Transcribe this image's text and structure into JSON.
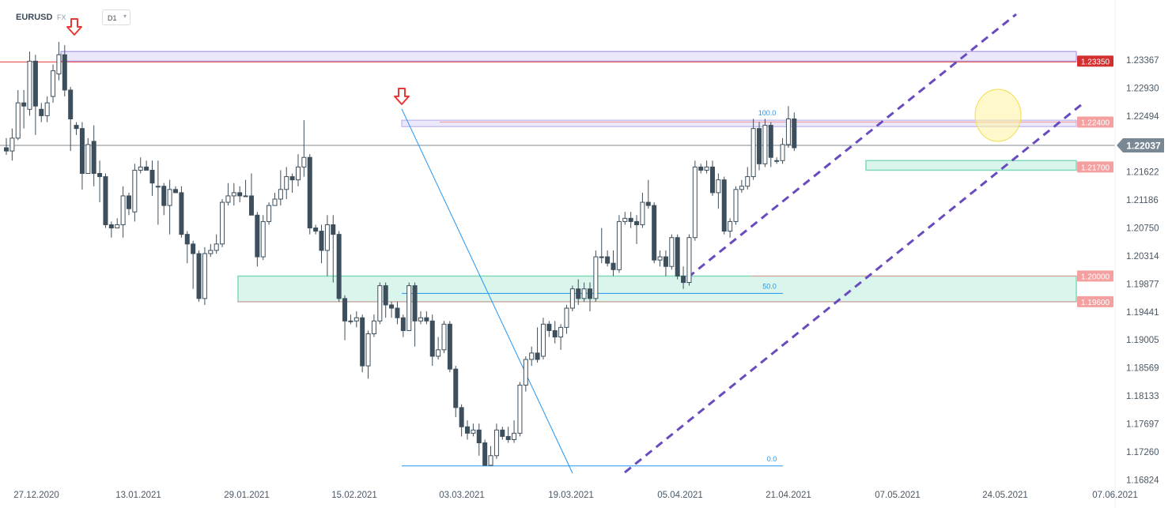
{
  "header": {
    "symbol": "EURUSD",
    "market": "FX",
    "timeframe": "D1",
    "timeframe_icon": "chevron-down-icon"
  },
  "colors": {
    "bull_candle": "#ffffff",
    "bear_candle": "#3d4f5c",
    "candle_outline": "#3d4f5c",
    "channel": "#6a4bbf",
    "fib_line": "#2196f3",
    "support_zone": "#d9f5ec",
    "support_zone_border": "#7fd8b8",
    "resistance_zone": "#ece8fb",
    "resistance_zone_border": "#b7a8ec",
    "level_red": "#e53935",
    "level_pink": "#f29a9a",
    "current_price": "#7d8a96",
    "highlight": "#fff3a0",
    "arrow": "#e53935"
  },
  "chart_data": {
    "type": "candlestick",
    "instrument": "EURUSD",
    "timeframe": "D1",
    "y_axis": {
      "ticks": [
        "1.23367",
        "1.22930",
        "1.22494",
        "1.22057",
        "1.21622",
        "1.21186",
        "1.20750",
        "1.20314",
        "1.19877",
        "1.19441",
        "1.19005",
        "1.18569",
        "1.18133",
        "1.17697",
        "1.17260",
        "1.16824"
      ],
      "range": [
        1.1676,
        1.2362
      ]
    },
    "x_axis": {
      "ticks": [
        "27.12.2020",
        "13.01.2021",
        "29.01.2021",
        "15.02.2021",
        "03.03.2021",
        "19.03.2021",
        "05.04.2021",
        "21.04.2021",
        "07.05.2021",
        "24.05.2021",
        "07.06.2021"
      ]
    },
    "current_price": {
      "label": "1.22037",
      "value": 1.22037
    },
    "levels": [
      {
        "label": "1.23350",
        "value": 1.2335,
        "style": "red"
      },
      {
        "label": "1.22400",
        "value": 1.224,
        "style": "pink"
      },
      {
        "label": "1.21700",
        "value": 1.217,
        "style": "teal"
      },
      {
        "label": "1.20000",
        "value": 1.2,
        "style": "pink"
      },
      {
        "label": "1.19600",
        "value": 1.196,
        "style": "pink"
      }
    ],
    "fibonacci": [
      {
        "label": "100.0",
        "value": 1.2243
      },
      {
        "label": "50.0",
        "value": 1.1973
      },
      {
        "label": "0.0",
        "value": 1.1704
      }
    ],
    "candles": [
      [
        1.22,
        1.2195,
        1.2215,
        1.2189
      ],
      [
        1.2195,
        1.2215,
        1.223,
        1.218
      ],
      [
        1.2215,
        1.227,
        1.229,
        1.2212
      ],
      [
        1.227,
        1.2265,
        1.229,
        1.223
      ],
      [
        1.226,
        1.2335,
        1.235,
        1.225
      ],
      [
        1.2335,
        1.2265,
        1.2345,
        1.222
      ],
      [
        1.226,
        1.225,
        1.227,
        1.224
      ],
      [
        1.225,
        1.227,
        1.228,
        1.224
      ],
      [
        1.228,
        1.232,
        1.233,
        1.227
      ],
      [
        1.2315,
        1.2345,
        1.2365,
        1.2305
      ],
      [
        1.2345,
        1.229,
        1.236,
        1.228
      ],
      [
        1.229,
        1.2245,
        1.2295,
        1.2195
      ],
      [
        1.2235,
        1.223,
        1.224,
        1.222
      ],
      [
        1.223,
        1.216,
        1.224,
        1.2135
      ],
      [
        1.216,
        1.2205,
        1.2215,
        1.216
      ],
      [
        1.221,
        1.216,
        1.2235,
        1.214
      ],
      [
        1.216,
        1.2155,
        1.218,
        1.2115
      ],
      [
        1.2155,
        1.208,
        1.216,
        1.2075
      ],
      [
        1.208,
        1.2075,
        1.2085,
        1.206
      ],
      [
        1.2075,
        1.208,
        1.209,
        1.2075
      ],
      [
        1.208,
        1.2125,
        1.214,
        1.206
      ],
      [
        1.2125,
        1.2105,
        1.213,
        1.2095
      ],
      [
        1.21,
        1.2165,
        1.2175,
        1.2085
      ],
      [
        1.2165,
        1.217,
        1.2185,
        1.216
      ],
      [
        1.217,
        1.2165,
        1.218,
        1.2165
      ],
      [
        1.2165,
        1.2145,
        1.218,
        1.2125
      ],
      [
        1.214,
        1.214,
        1.218,
        1.208
      ],
      [
        1.214,
        1.211,
        1.2145,
        1.2095
      ],
      [
        1.211,
        1.2135,
        1.215,
        1.2065
      ],
      [
        1.2135,
        1.213,
        1.214,
        1.213
      ],
      [
        1.213,
        1.2065,
        1.214,
        1.206
      ],
      [
        1.2065,
        1.205,
        1.207,
        1.202
      ],
      [
        1.205,
        1.2035,
        1.2055,
        1.198
      ],
      [
        1.2035,
        1.1965,
        1.204,
        1.196
      ],
      [
        1.1965,
        1.2035,
        1.2045,
        1.1955
      ],
      [
        1.2035,
        1.204,
        1.205,
        1.203
      ],
      [
        1.204,
        1.205,
        1.2065,
        1.2035
      ],
      [
        1.205,
        1.2115,
        1.212,
        1.2045
      ],
      [
        1.2115,
        1.2125,
        1.2145,
        1.211
      ],
      [
        1.2125,
        1.213,
        1.2145,
        1.211
      ],
      [
        1.213,
        1.2125,
        1.214,
        1.2115
      ],
      [
        1.2125,
        1.2125,
        1.215,
        1.2125
      ],
      [
        1.2125,
        1.2095,
        1.216,
        1.2095
      ],
      [
        1.2095,
        1.203,
        1.21,
        1.2015
      ],
      [
        1.203,
        1.2085,
        1.2095,
        1.2025
      ],
      [
        1.2085,
        1.211,
        1.2115,
        1.208
      ],
      [
        1.211,
        1.212,
        1.213,
        1.211
      ],
      [
        1.212,
        1.2135,
        1.2165,
        1.211
      ],
      [
        1.2135,
        1.2155,
        1.217,
        1.212
      ],
      [
        1.2155,
        1.215,
        1.216,
        1.213
      ],
      [
        1.215,
        1.217,
        1.219,
        1.214
      ],
      [
        1.217,
        1.2185,
        1.2243,
        1.2155
      ],
      [
        1.2185,
        1.2075,
        1.219,
        1.2065
      ],
      [
        1.2075,
        1.207,
        1.208,
        1.2065
      ],
      [
        1.207,
        1.204,
        1.208,
        1.202
      ],
      [
        1.204,
        1.208,
        1.2095,
        1.2
      ],
      [
        1.208,
        1.2065,
        1.2095,
        1.199
      ],
      [
        1.2065,
        1.1965,
        1.207,
        1.196
      ],
      [
        1.1965,
        1.193,
        1.197,
        1.19
      ],
      [
        1.193,
        1.193,
        1.194,
        1.1925
      ],
      [
        1.193,
        1.1935,
        1.1945,
        1.192
      ],
      [
        1.1935,
        1.186,
        1.194,
        1.185
      ],
      [
        1.186,
        1.191,
        1.1915,
        1.184
      ],
      [
        1.191,
        1.193,
        1.194,
        1.1905
      ],
      [
        1.193,
        1.1985,
        1.199,
        1.1925
      ],
      [
        1.1985,
        1.1955,
        1.199,
        1.1935
      ],
      [
        1.1955,
        1.195,
        1.196,
        1.1935
      ],
      [
        1.195,
        1.1935,
        1.196,
        1.1925
      ],
      [
        1.1935,
        1.1915,
        1.194,
        1.1905
      ],
      [
        1.1915,
        1.1985,
        1.199,
        1.1915
      ],
      [
        1.1985,
        1.193,
        1.199,
        1.189
      ],
      [
        1.193,
        1.1935,
        1.1945,
        1.1925
      ],
      [
        1.1935,
        1.193,
        1.1945,
        1.1925
      ],
      [
        1.193,
        1.1875,
        1.194,
        1.186
      ],
      [
        1.1875,
        1.1885,
        1.1905,
        1.187
      ],
      [
        1.1885,
        1.1925,
        1.193,
        1.188
      ],
      [
        1.1925,
        1.1855,
        1.193,
        1.185
      ],
      [
        1.1855,
        1.1795,
        1.186,
        1.178
      ],
      [
        1.1795,
        1.1765,
        1.18,
        1.175
      ],
      [
        1.1765,
        1.1755,
        1.1775,
        1.1745
      ],
      [
        1.1755,
        1.176,
        1.177,
        1.175
      ],
      [
        1.176,
        1.174,
        1.177,
        1.172
      ],
      [
        1.174,
        1.1705,
        1.1745,
        1.1704
      ],
      [
        1.1705,
        1.172,
        1.1735,
        1.1704
      ],
      [
        1.172,
        1.176,
        1.177,
        1.1715
      ],
      [
        1.176,
        1.175,
        1.1765,
        1.1745
      ],
      [
        1.175,
        1.1745,
        1.1765,
        1.174
      ],
      [
        1.1745,
        1.1755,
        1.1775,
        1.174
      ],
      [
        1.1755,
        1.183,
        1.1835,
        1.175
      ],
      [
        1.183,
        1.187,
        1.1875,
        1.182
      ],
      [
        1.187,
        1.188,
        1.189,
        1.186
      ],
      [
        1.188,
        1.187,
        1.192,
        1.1865
      ],
      [
        1.1875,
        1.1925,
        1.1935,
        1.187
      ],
      [
        1.1925,
        1.1915,
        1.193,
        1.1905
      ],
      [
        1.1915,
        1.1905,
        1.193,
        1.1895
      ],
      [
        1.1905,
        1.192,
        1.1925,
        1.1885
      ],
      [
        1.192,
        1.195,
        1.1955,
        1.191
      ],
      [
        1.195,
        1.198,
        1.1985,
        1.1945
      ],
      [
        1.198,
        1.1965,
        1.1995,
        1.1955
      ],
      [
        1.1965,
        1.198,
        1.199,
        1.196
      ],
      [
        1.198,
        1.1965,
        1.199,
        1.1945
      ],
      [
        1.1965,
        1.203,
        1.204,
        1.196
      ],
      [
        1.203,
        1.203,
        1.2075,
        1.202
      ],
      [
        1.203,
        1.202,
        1.204,
        1.2015
      ],
      [
        1.202,
        1.201,
        1.204,
        1.2
      ],
      [
        1.201,
        1.2085,
        1.2095,
        1.2005
      ],
      [
        1.2085,
        1.209,
        1.21,
        1.208
      ],
      [
        1.209,
        1.2085,
        1.21,
        1.2075
      ],
      [
        1.2085,
        1.208,
        1.2095,
        1.205
      ],
      [
        1.208,
        1.2115,
        1.213,
        1.2075
      ],
      [
        1.2115,
        1.211,
        1.215,
        1.2105
      ],
      [
        1.211,
        1.2025,
        1.2115,
        1.202
      ],
      [
        1.2025,
        1.203,
        1.204,
        1.2015
      ],
      [
        1.203,
        1.2015,
        1.204,
        1.2
      ],
      [
        1.2015,
        1.206,
        1.2065,
        1.201
      ],
      [
        1.206,
        1.2,
        1.2065,
        1.1995
      ],
      [
        1.2,
        1.199,
        1.2015,
        1.198
      ],
      [
        1.199,
        1.206,
        1.2065,
        1.1985
      ],
      [
        1.206,
        1.217,
        1.218,
        1.2055
      ],
      [
        1.217,
        1.2165,
        1.2175,
        1.216
      ],
      [
        1.2165,
        1.217,
        1.218,
        1.216
      ],
      [
        1.217,
        1.213,
        1.218,
        1.2125
      ],
      [
        1.213,
        1.215,
        1.216,
        1.2105
      ],
      [
        1.215,
        1.207,
        1.2155,
        1.2065
      ],
      [
        1.207,
        1.2085,
        1.209,
        1.206
      ],
      [
        1.2085,
        1.2135,
        1.214,
        1.208
      ],
      [
        1.2135,
        1.214,
        1.215,
        1.213
      ],
      [
        1.214,
        1.2155,
        1.217,
        1.2135
      ],
      [
        1.2155,
        1.223,
        1.2245,
        1.215
      ],
      [
        1.223,
        1.2175,
        1.224,
        1.2165
      ],
      [
        1.2175,
        1.2235,
        1.2245,
        1.217
      ],
      [
        1.2235,
        1.2185,
        1.224,
        1.217
      ],
      [
        1.218,
        1.218,
        1.2185,
        1.2175
      ],
      [
        1.218,
        1.2205,
        1.2215,
        1.2175
      ],
      [
        1.2205,
        1.2245,
        1.2265,
        1.22
      ],
      [
        1.2245,
        1.22,
        1.2255,
        1.2195
      ]
    ]
  }
}
